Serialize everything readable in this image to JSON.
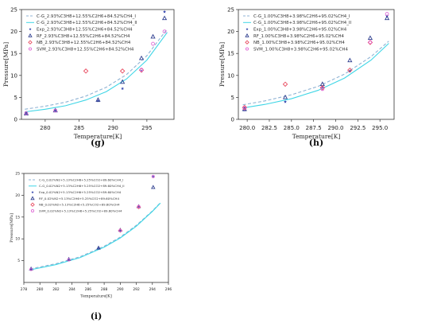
{
  "chart_data": [
    {
      "panel_label": "(g)",
      "type": "scatter",
      "xlabel": "Temperature[K]",
      "ylabel": "Pressure[MPa]",
      "xlim": [
        276.5,
        299.0
      ],
      "ylim": [
        0,
        25
      ],
      "xticks": [
        280,
        285,
        290,
        295
      ],
      "yticks": [
        0,
        5,
        10,
        15,
        20,
        25
      ],
      "xtick_labels": [
        "280",
        "285",
        "290",
        "295"
      ],
      "ytick_labels": [
        "0",
        "5",
        "10",
        "15",
        "20",
        "25"
      ],
      "legend_position": "top-left",
      "series": [
        {
          "name": "C-G_2.93%C3H8+12.55%C2H6+84.52%CH4_I",
          "kind": "dashed-line",
          "color": "#8fb3d4",
          "x": [
            277,
            280,
            283,
            286,
            289,
            292,
            295,
            298
          ],
          "values": [
            2.3,
            3.0,
            3.9,
            5.3,
            7.3,
            10.2,
            14.5,
            20.6
          ]
        },
        {
          "name": "C-G_2.93%C3H8+12.55%C2H6+84.52%CH4_II",
          "kind": "solid-line",
          "color": "#3fd6e6",
          "x": [
            277,
            280,
            283,
            286,
            289,
            292,
            295,
            298
          ],
          "values": [
            1.7,
            2.3,
            3.1,
            4.4,
            6.3,
            9.2,
            13.5,
            19.8
          ]
        },
        {
          "name": "Exp_2.93%C3H8+12.55%C2H6+84.52%CH4",
          "kind": "star",
          "color": "#3a4bb0",
          "x": [
            277.2,
            281.5,
            287.8,
            291.4,
            294.2,
            297.6
          ],
          "values": [
            1.2,
            1.9,
            4.2,
            7.0,
            11.0,
            24.5
          ]
        },
        {
          "name": "RF_2.93%C3H8+12.55%C2H6+84.52%CH4",
          "kind": "triangle",
          "color": "#2f3f8f",
          "x": [
            277.2,
            281.5,
            287.8,
            291.4,
            294.2,
            295.9,
            297.6
          ],
          "values": [
            1.3,
            2.0,
            4.4,
            8.5,
            13.9,
            18.8,
            23.0
          ]
        },
        {
          "name": "NB_2.93%C3H8+12.55%C2H6+84.52%CH4",
          "kind": "diamond",
          "color": "#e84a5f",
          "x": [
            286.0,
            291.4,
            294.2
          ],
          "values": [
            11.0,
            11.0,
            11.2
          ]
        },
        {
          "name": "SVM_2.93%C3H8+12.55%C2H6+84.52%CH4",
          "kind": "circle",
          "color": "#e06bd6",
          "x": [
            277.2,
            281.5,
            294.2,
            295.9,
            297.6
          ],
          "values": [
            1.4,
            2.0,
            11.3,
            17.2,
            20.0
          ]
        }
      ]
    },
    {
      "panel_label": "(h)",
      "type": "scatter",
      "xlabel": "Temperature[K]",
      "ylabel": "Pressure[MPa]",
      "xlim": [
        279.0,
        296.6
      ],
      "ylim": [
        0,
        25
      ],
      "xticks": [
        280.0,
        282.5,
        285.0,
        287.5,
        290.0,
        292.5,
        295.0
      ],
      "yticks": [
        0,
        5,
        10,
        15,
        20,
        25
      ],
      "xtick_labels": [
        "280.0",
        "282.5",
        "285.0",
        "287.5",
        "290.0",
        "292.5",
        "295.0"
      ],
      "ytick_labels": [
        "0",
        "5",
        "10",
        "15",
        "20",
        "25"
      ],
      "legend_position": "top-left",
      "series": [
        {
          "name": "C-G_1.00%C3H8+3.98%C2H6+95.02%CH4_I",
          "kind": "dashed-line",
          "color": "#8fb3d4",
          "x": [
            279.5,
            282,
            285,
            288,
            291,
            294,
            296
          ],
          "values": [
            3.3,
            4.2,
            5.6,
            7.5,
            10.3,
            14.3,
            17.8
          ]
        },
        {
          "name": "C-G_1.00%C3H8+3.98%C2H6+95.02%CH4_II",
          "kind": "solid-line",
          "color": "#3fd6e6",
          "x": [
            279.5,
            282,
            285,
            288,
            291,
            294,
            296
          ],
          "values": [
            2.6,
            3.4,
            4.7,
            6.6,
            9.4,
            13.5,
            17.3
          ]
        },
        {
          "name": "Exp_1.00%C3H8+3.98%C2H6+95.02%CH4",
          "kind": "star",
          "color": "#3a4bb0",
          "x": [
            279.7,
            284.3,
            288.5,
            291.6,
            295.8
          ],
          "values": [
            2.1,
            4.0,
            7.3,
            11.0,
            23.5
          ]
        },
        {
          "name": "RF_1.00%C3H8+3.98%C2H6+95.02%CH4",
          "kind": "triangle",
          "color": "#2f3f8f",
          "x": [
            279.7,
            284.3,
            288.5,
            291.6,
            293.9,
            295.8
          ],
          "values": [
            2.3,
            5.0,
            8.0,
            13.4,
            18.5,
            23.0
          ]
        },
        {
          "name": "NB_1.00%C3H8+3.98%C2H6+95.02%CH4",
          "kind": "diamond",
          "color": "#e84a5f",
          "x": [
            279.7,
            284.3,
            288.5,
            291.6,
            293.9
          ],
          "values": [
            2.7,
            8.0,
            7.2,
            11.2,
            17.5
          ]
        },
        {
          "name": "SVM_1.00%C3H8+3.98%C2H6+95.02%CH4",
          "kind": "circle",
          "color": "#e06bd6",
          "x": [
            279.7,
            288.5,
            293.9,
            295.8
          ],
          "values": [
            2.5,
            6.9,
            17.6,
            24.0
          ]
        }
      ]
    },
    {
      "panel_label": "(i)",
      "type": "scatter",
      "xlabel": "Temperature[K]",
      "ylabel": "Pressure[MPa]",
      "xlim": [
        278.0,
        296.0
      ],
      "ylim": [
        0,
        25
      ],
      "xticks": [
        278,
        280,
        282,
        284,
        286,
        288,
        290,
        292,
        294,
        296
      ],
      "yticks": [
        5,
        10,
        15,
        20,
        25
      ],
      "xtick_labels": [
        "278",
        "280",
        "282",
        "284",
        "286",
        "288",
        "290",
        "292",
        "294",
        "296"
      ],
      "ytick_labels": [
        "5",
        "10",
        "15",
        "20",
        "25"
      ],
      "legend_position": "top-left",
      "series": [
        {
          "name": "C-G_0.02%N2+5.13%C2H6+5.25%CO2+89.60%CH4_I",
          "kind": "dashed-line",
          "color": "#8fb3d4",
          "x": [
            278.8,
            282,
            285,
            288,
            290,
            292,
            294,
            295
          ],
          "values": [
            3.1,
            4.3,
            5.9,
            8.3,
            10.4,
            13.1,
            16.4,
            18.3
          ]
        },
        {
          "name": "C-G_0.02%N2+5.13%C2H6+5.25%CO2+89.60%CH4_II",
          "kind": "solid-line",
          "color": "#3fd6e6",
          "x": [
            278.8,
            282,
            285,
            288,
            290,
            292,
            294,
            295
          ],
          "values": [
            2.9,
            4.1,
            5.7,
            8.1,
            10.2,
            12.9,
            16.3,
            18.2
          ]
        },
        {
          "name": "Exp_0.02%N2+5.13%C2H6+5.25%CO2+89.60%CH4",
          "kind": "star",
          "color": "#3a4bb0",
          "x": [
            278.9,
            283.6,
            287.3,
            290.0,
            292.3,
            294.1
          ],
          "values": [
            3.0,
            5.2,
            7.8,
            11.9,
            17.3,
            24.3
          ]
        },
        {
          "name": "RF_0.02%N2+5.13%C2H6+5.25%CO2+89.60%CH4",
          "kind": "triangle",
          "color": "#2f3f8f",
          "x": [
            278.9,
            283.6,
            287.3,
            290.0,
            292.3,
            294.1
          ],
          "values": [
            3.1,
            5.3,
            7.9,
            12.0,
            17.4,
            21.8
          ]
        },
        {
          "name": "NB_0.02%N2+5.13%C2H6+5.25%CO2+89.60%CH4",
          "kind": "diamond",
          "color": "#e84a5f",
          "x": [
            290.0,
            292.3
          ],
          "values": [
            11.9,
            17.3
          ]
        },
        {
          "name": "SVM_0.02%N2+5.13%C2H6+5.25%CO2+89.60%CH4",
          "kind": "circle",
          "color": "#e06bd6",
          "x": [
            278.9,
            283.6,
            290.0,
            292.3,
            294.1
          ],
          "values": [
            3.0,
            5.2,
            11.9,
            17.4,
            24.3
          ]
        }
      ]
    }
  ]
}
